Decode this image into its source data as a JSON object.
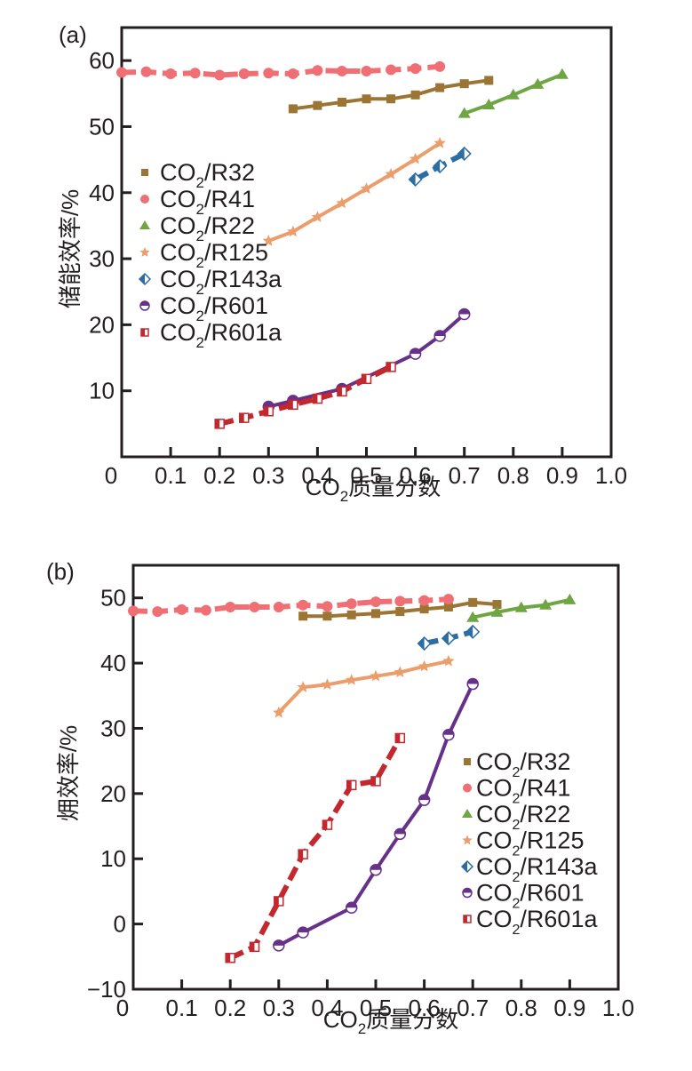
{
  "chart_data": [
    {
      "type": "line",
      "panel_label": "(a)",
      "title": "",
      "xlabel": "CO2质量分数",
      "xlabel_parts": {
        "pre": "CO",
        "sub": "2",
        "post": "质量分数"
      },
      "ylabel": "储能效率/%",
      "xlim": [
        0,
        1.0
      ],
      "ylim": [
        0,
        65
      ],
      "xticks": [
        0,
        0.1,
        0.2,
        0.3,
        0.4,
        0.5,
        0.6,
        0.7,
        0.8,
        0.9,
        1.0
      ],
      "xtick_labels": [
        "0",
        "0.1",
        "0.2",
        "0.3",
        "0.4",
        "0.5",
        "0.6",
        "0.7",
        "0.8",
        "0.9",
        "1.0"
      ],
      "yticks": [
        10,
        20,
        30,
        40,
        50,
        60
      ],
      "ytick_labels": [
        "10",
        "20",
        "30",
        "40",
        "50",
        "60"
      ],
      "grid": false,
      "legend_position": "middle-left",
      "series": [
        {
          "name": "CO2/R32",
          "label_pre": "CO",
          "label_sub": "2",
          "label_post": "/R32",
          "color": "#9c7433",
          "marker": "square",
          "dash": false,
          "x": [
            0.35,
            0.4,
            0.45,
            0.5,
            0.55,
            0.6,
            0.65,
            0.7,
            0.75
          ],
          "y": [
            52.7,
            53.2,
            53.7,
            54.2,
            54.2,
            54.8,
            55.9,
            56.5,
            57.0
          ]
        },
        {
          "name": "CO2/R41",
          "label_pre": "CO",
          "label_sub": "2",
          "label_post": "/R41",
          "color": "#ef6f74",
          "marker": "circle",
          "dash": true,
          "x": [
            0,
            0.05,
            0.1,
            0.15,
            0.2,
            0.25,
            0.3,
            0.35,
            0.4,
            0.45,
            0.5,
            0.55,
            0.6,
            0.65
          ],
          "y": [
            58.2,
            58.3,
            58.0,
            58.1,
            57.8,
            58.0,
            58.1,
            58.0,
            58.5,
            58.4,
            58.4,
            58.6,
            58.8,
            59.1
          ]
        },
        {
          "name": "CO2/R22",
          "label_pre": "CO",
          "label_sub": "2",
          "label_post": "/R22",
          "color": "#6fa542",
          "marker": "triangle",
          "dash": false,
          "x": [
            0.7,
            0.75,
            0.8,
            0.85,
            0.9
          ],
          "y": [
            52.0,
            53.3,
            54.8,
            56.4,
            57.9
          ]
        },
        {
          "name": "CO2/R125",
          "label_pre": "CO",
          "label_sub": "2",
          "label_post": "/R125",
          "color": "#eb9e6c",
          "marker": "star",
          "dash": false,
          "x": [
            0.3,
            0.35,
            0.4,
            0.45,
            0.5,
            0.55,
            0.6,
            0.65
          ],
          "y": [
            32.7,
            34.1,
            36.3,
            38.4,
            40.6,
            42.8,
            45.1,
            47.5
          ]
        },
        {
          "name": "CO2/R143a",
          "label_pre": "CO",
          "label_sub": "2",
          "label_post": "/R143a",
          "color": "#2c6da3",
          "marker": "half-diamond",
          "dash": true,
          "x": [
            0.6,
            0.65,
            0.7
          ],
          "y": [
            42.0,
            44.0,
            45.9
          ]
        },
        {
          "name": "CO2/R601",
          "label_pre": "CO",
          "label_sub": "2",
          "label_post": "/R601",
          "color": "#673089",
          "marker": "half-circle",
          "dash": false,
          "x": [
            0.3,
            0.35,
            0.45,
            0.6,
            0.65,
            0.7
          ],
          "y": [
            7.6,
            8.5,
            10.3,
            15.6,
            18.3,
            21.6
          ]
        },
        {
          "name": "CO2/R601a",
          "label_pre": "CO",
          "label_sub": "2",
          "label_post": "/R601a",
          "color": "#c3282f",
          "marker": "half-square",
          "dash": true,
          "x": [
            0.2,
            0.25,
            0.3,
            0.35,
            0.4,
            0.45,
            0.5,
            0.55
          ],
          "y": [
            5.0,
            5.9,
            6.9,
            7.9,
            8.8,
            9.9,
            11.8,
            13.6
          ]
        }
      ]
    },
    {
      "type": "line",
      "panel_label": "(b)",
      "title": "",
      "xlabel": "CO2质量分数",
      "xlabel_parts": {
        "pre": "CO",
        "sub": "2",
        "post": "质量分数"
      },
      "ylabel": "㶲效率/%",
      "xlim": [
        0,
        1.0
      ],
      "ylim": [
        -10,
        55
      ],
      "xticks": [
        0,
        0.1,
        0.2,
        0.3,
        0.4,
        0.5,
        0.6,
        0.7,
        0.8,
        0.9,
        1.0
      ],
      "xtick_labels": [
        "0",
        "0.1",
        "0.2",
        "0.3",
        "0.4",
        "0.5",
        "0.6",
        "0.7",
        "0.8",
        "0.9",
        "1.0"
      ],
      "yticks": [
        -10,
        0,
        10,
        20,
        30,
        40,
        50
      ],
      "ytick_labels": [
        "−10",
        "0",
        "10",
        "20",
        "30",
        "40",
        "50"
      ],
      "grid": false,
      "legend_position": "middle-right",
      "series": [
        {
          "name": "CO2/R32",
          "label_pre": "CO",
          "label_sub": "2",
          "label_post": "/R32",
          "color": "#9c7433",
          "marker": "square",
          "dash": false,
          "x": [
            0.35,
            0.4,
            0.45,
            0.5,
            0.55,
            0.6,
            0.65,
            0.7,
            0.75
          ],
          "y": [
            47.2,
            47.2,
            47.4,
            47.6,
            47.9,
            48.3,
            48.6,
            49.3,
            49.0
          ]
        },
        {
          "name": "CO2/R41",
          "label_pre": "CO",
          "label_sub": "2",
          "label_post": "/R41",
          "color": "#ef6f74",
          "marker": "circle",
          "dash": true,
          "x": [
            0,
            0.05,
            0.1,
            0.15,
            0.2,
            0.25,
            0.3,
            0.35,
            0.4,
            0.45,
            0.5,
            0.55,
            0.6,
            0.65
          ],
          "y": [
            48.0,
            47.9,
            48.2,
            48.1,
            48.6,
            48.6,
            48.6,
            48.9,
            48.7,
            49.1,
            49.4,
            49.5,
            49.6,
            49.8
          ]
        },
        {
          "name": "CO2/R22",
          "label_pre": "CO",
          "label_sub": "2",
          "label_post": "/R22",
          "color": "#6fa542",
          "marker": "triangle",
          "dash": false,
          "x": [
            0.7,
            0.75,
            0.8,
            0.85,
            0.9
          ],
          "y": [
            47.0,
            47.8,
            48.5,
            48.9,
            49.7
          ]
        },
        {
          "name": "CO2/R125",
          "label_pre": "CO",
          "label_sub": "2",
          "label_post": "/R125",
          "color": "#eb9e6c",
          "marker": "star",
          "dash": false,
          "x": [
            0.3,
            0.35,
            0.4,
            0.45,
            0.5,
            0.55,
            0.6,
            0.65
          ],
          "y": [
            32.4,
            36.3,
            36.7,
            37.4,
            38.0,
            38.6,
            39.5,
            40.3
          ]
        },
        {
          "name": "CO2/R143a",
          "label_pre": "CO",
          "label_sub": "2",
          "label_post": "/R143a",
          "color": "#2c6da3",
          "marker": "half-diamond",
          "dash": true,
          "x": [
            0.6,
            0.65,
            0.7
          ],
          "y": [
            43.0,
            43.8,
            44.8
          ]
        },
        {
          "name": "CO2/R601",
          "label_pre": "CO",
          "label_sub": "2",
          "label_post": "/R601",
          "color": "#673089",
          "marker": "half-circle",
          "dash": false,
          "x": [
            0.3,
            0.35,
            0.45,
            0.5,
            0.55,
            0.6,
            0.65,
            0.7
          ],
          "y": [
            -3.3,
            -1.3,
            2.5,
            8.3,
            13.8,
            19.0,
            29.0,
            36.8
          ]
        },
        {
          "name": "CO2/R601a",
          "label_pre": "CO",
          "label_sub": "2",
          "label_post": "/R601a",
          "color": "#c3282f",
          "marker": "half-square",
          "dash": true,
          "x": [
            0.2,
            0.25,
            0.3,
            0.35,
            0.4,
            0.45,
            0.5,
            0.55
          ],
          "y": [
            -5.2,
            -3.5,
            3.5,
            10.7,
            15.2,
            21.3,
            21.9,
            28.5
          ]
        }
      ]
    }
  ]
}
